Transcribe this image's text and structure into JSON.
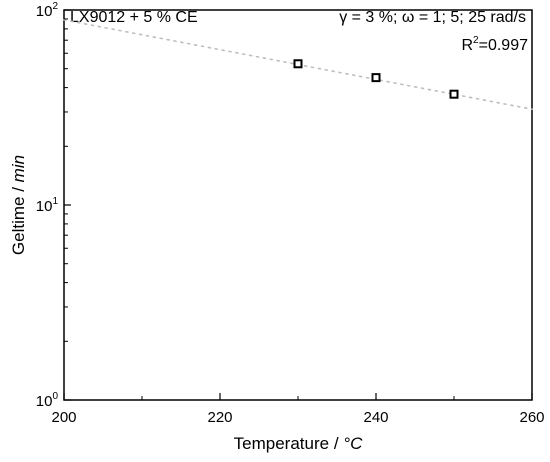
{
  "chart_data": {
    "type": "scatter",
    "title_left": "LX9012 + 5 % CE",
    "title_right": "γ = 3 %; ω = 1; 5; 25 rad/s",
    "annotation": {
      "r2_label": "R",
      "r2_exp": "2",
      "r2_value": "=0.997"
    },
    "xlabel": {
      "text": "Temperature  /  ",
      "unit": "°C"
    },
    "ylabel": {
      "text": "Geltime  /  ",
      "unit": "min"
    },
    "xlim": [
      200,
      260
    ],
    "xticks": [
      200,
      220,
      240,
      260
    ],
    "ylim": [
      1,
      100
    ],
    "yscale": "log",
    "yticks": [
      {
        "value": 1,
        "base": "10",
        "exp": "0"
      },
      {
        "value": 10,
        "base": "10",
        "exp": "1"
      },
      {
        "value": 100,
        "base": "10",
        "exp": "2"
      }
    ],
    "grid": false,
    "marker": "square",
    "points": [
      {
        "x": 230,
        "y": 53
      },
      {
        "x": 240,
        "y": 45
      },
      {
        "x": 250,
        "y": 37
      }
    ],
    "fit": {
      "style": "dotted",
      "color": "#bdbdbd",
      "x": [
        200,
        260
      ],
      "y": [
        89,
        31
      ]
    }
  }
}
